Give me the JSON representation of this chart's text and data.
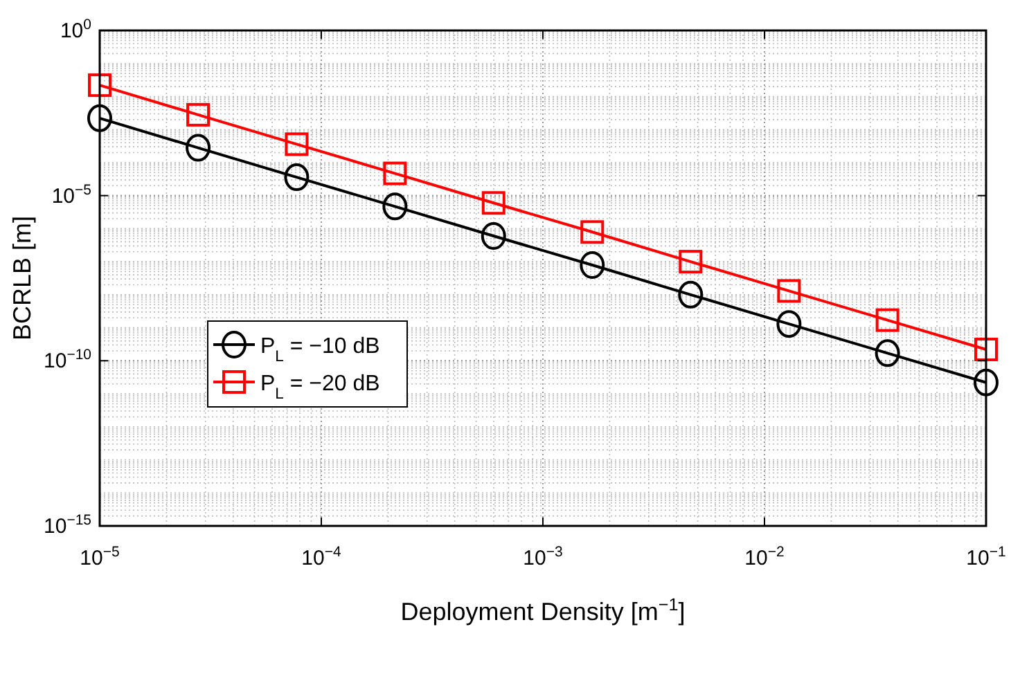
{
  "chart_data": {
    "type": "line",
    "xlabel": "Deployment Density [m$^{−1}$]",
    "ylabel": "BCRLB [m]",
    "x": [
      1e-05,
      2.78e-05,
      7.74e-05,
      0.000215,
      0.000599,
      0.00167,
      0.00464,
      0.0129,
      0.0359,
      0.1
    ],
    "series": [
      {
        "name": "P$_{L}$ = −10 dB",
        "color": "#000000",
        "marker": "circle",
        "values": [
          0.0022,
          0.00028,
          3.6e-05,
          4.7e-06,
          6e-07,
          7.9e-08,
          1e-08,
          1.3e-09,
          1.7e-10,
          2.2e-11
        ]
      },
      {
        "name": "P$_{L}$ = −20 dB",
        "color": "#ff0000",
        "marker": "square",
        "values": [
          0.022,
          0.0028,
          0.00036,
          4.7e-05,
          6e-06,
          7.9e-07,
          1e-07,
          1.3e-08,
          1.7e-09,
          2.2e-10
        ]
      }
    ],
    "log": "xy",
    "xlim": [
      1e-05,
      0.1
    ],
    "ylim": [
      1e-15,
      1
    ],
    "xticks": [
      {
        "value": 1e-05,
        "label": "10$^{−5}$"
      },
      {
        "value": 0.0001,
        "label": "10$^{−4}$"
      },
      {
        "value": 0.001,
        "label": "10$^{−3}$"
      },
      {
        "value": 0.01,
        "label": "10$^{−2}$"
      },
      {
        "value": 0.1,
        "label": "10$^{−1}$"
      }
    ],
    "yticks": [
      {
        "value": 1e-15,
        "label": "10$^{−15}$"
      },
      {
        "value": 1e-10,
        "label": "10$^{−10}$"
      },
      {
        "value": 1e-05,
        "label": "10$^{−5}$"
      },
      {
        "value": 1,
        "label": "10$^{0}$"
      }
    ],
    "grid": true,
    "legend": "left",
    "line_style": "solid"
  }
}
